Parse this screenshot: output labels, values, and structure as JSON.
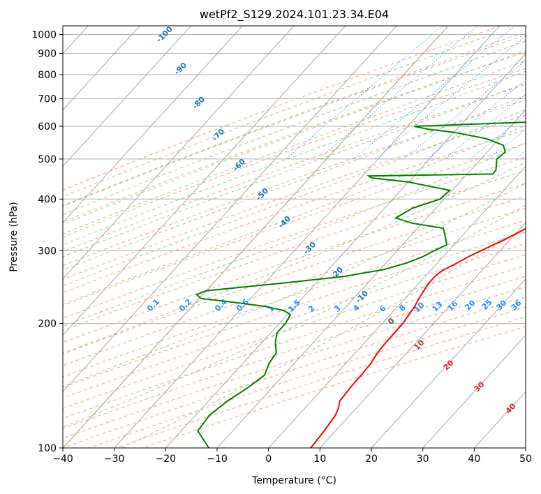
{
  "chart_data": {
    "type": "line",
    "title": "wetPf2_S129.2024.101.23.34.E04",
    "xlabel": "Temperature (°C)",
    "ylabel": "Pressure (hPa)",
    "xlim": [
      -40,
      50
    ],
    "ylim": [
      1050,
      100
    ],
    "y_scale": "log",
    "grid": true,
    "x_ticks": [
      -40,
      -30,
      -20,
      -10,
      0,
      10,
      20,
      30,
      40,
      50
    ],
    "y_ticks": [
      100,
      200,
      300,
      400,
      500,
      600,
      700,
      800,
      900,
      1000
    ],
    "skew": "skew-T log-P",
    "series": [
      {
        "color": "#ff0000",
        "p": [
          1040,
          1020,
          1000,
          980,
          950,
          900,
          850,
          800,
          750,
          700,
          650,
          600,
          550,
          500,
          470,
          450,
          420,
          400,
          380,
          360,
          340,
          320,
          300,
          290,
          280,
          270,
          265,
          260,
          250,
          240,
          230,
          220,
          200,
          180,
          170,
          160,
          150,
          140,
          130,
          125,
          120,
          110,
          100
        ],
        "t": [
          25.3,
          24.0,
          23.0,
          22.7,
          22.3,
          22.2,
          22.2,
          22.0,
          21.2,
          20.3,
          19.3,
          18.9,
          18.5,
          17.9,
          17.9,
          17.8,
          16.9,
          16.0,
          14.9,
          13.2,
          11.2,
          9.0,
          6.3,
          4.9,
          3.8,
          2.5,
          2.1,
          1.9,
          1.9,
          2.3,
          2.7,
          3.3,
          4.0,
          4.1,
          4.3,
          4.9,
          5.1,
          5.2,
          5.5,
          6.5,
          7.2,
          7.8,
          8.2
        ]
      },
      {
        "color": "#008000",
        "p": [
          1040,
          1020,
          1000,
          980,
          950,
          900,
          870,
          850,
          830,
          810,
          790,
          770,
          750,
          720,
          700,
          680,
          660,
          650,
          640,
          620,
          600,
          590,
          580,
          560,
          540,
          520,
          500,
          470,
          460,
          455,
          450,
          440,
          420,
          400,
          380,
          360,
          350,
          340,
          320,
          310,
          300,
          290,
          280,
          270,
          260,
          250,
          240,
          235,
          230,
          225,
          220,
          215,
          210,
          200,
          190,
          180,
          170,
          160,
          150,
          140,
          130,
          120,
          110,
          100
        ],
        "t": [
          21.4,
          21.4,
          21.3,
          20.8,
          20.0,
          17.8,
          16.2,
          15.1,
          13.3,
          12.1,
          12.0,
          10.7,
          8.5,
          5.2,
          2.1,
          2.7,
          4.1,
          4.3,
          3.3,
          1.5,
          -28.8,
          -25.5,
          -19.9,
          -12.6,
          -8.1,
          -6.5,
          -6.9,
          -5.1,
          -5.0,
          -28.8,
          -27.9,
          -20.1,
          -10.5,
          -10.8,
          -14.6,
          -16.1,
          -12.1,
          -5.0,
          -2.6,
          -1.4,
          -2.8,
          -4.0,
          -6.0,
          -9.3,
          -15.8,
          -27.1,
          -40.0,
          -41.2,
          -39.7,
          -32.5,
          -25.8,
          -21.4,
          -19.4,
          -18.8,
          -18.8,
          -17.4,
          -15.4,
          -14.9,
          -13.7,
          -14.7,
          -16.3,
          -17.3,
          -16.8,
          -11.6
        ]
      }
    ],
    "isotherm_labels": [
      "-100",
      "-90",
      "-80",
      "-70",
      "-60",
      "-50",
      "-40",
      "-30",
      "-20",
      "-10",
      "0"
    ],
    "dry_adiabat_labels": [
      "10",
      "20",
      "30",
      "40"
    ],
    "mixing_ratio_labels": [
      "0.1",
      "0.2",
      "0.4",
      "0.6",
      "1",
      "1.5",
      "2",
      "3",
      "4",
      "6",
      "8",
      "10",
      "13",
      "16",
      "20",
      "25",
      "30",
      "36"
    ],
    "colors": {
      "temperature": "#ff0000",
      "dewpoint": "#008000",
      "isotherm": "#aaaaaa",
      "dry_adiabat": "#ffa07a",
      "moist_adiabat": "#9acd9a",
      "mixing_ratio": "#1e90ff",
      "isotherm_label": "#1f77b4",
      "zero_label": "#555555",
      "dry_label": "#d62728",
      "freezing": "#d2b48c"
    }
  }
}
